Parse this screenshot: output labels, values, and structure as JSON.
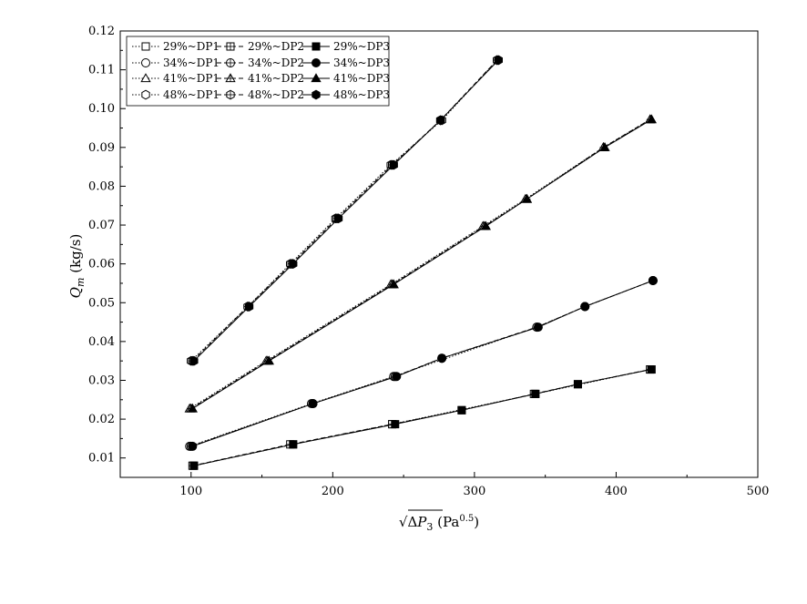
{
  "chart_data": {
    "type": "line",
    "xlabel": "√ΔP₃ (Pa^0.5)",
    "ylabel": "Q_m (kg/s)",
    "xlim": [
      50,
      500
    ],
    "ylim": [
      0.005,
      0.12
    ],
    "xticks": [
      100,
      200,
      300,
      400,
      500
    ],
    "yticks": [
      0.01,
      0.02,
      0.03,
      0.04,
      0.05,
      0.06,
      0.07,
      0.08,
      0.09,
      0.1,
      0.11,
      0.12
    ],
    "ytick_labels": [
      "0.01",
      "0.02",
      "0.03",
      "0.04",
      "0.05",
      "0.06",
      "0.07",
      "0.08",
      "0.09",
      "0.10",
      "0.11",
      "0.12"
    ],
    "legend_position": "top-left",
    "grid": false,
    "series": [
      {
        "name": "29%~DP1",
        "marker": "square-open",
        "line": "dotted",
        "x": [
          102,
          172,
          242,
          343,
          424
        ],
        "y": [
          0.008,
          0.0135,
          0.0187,
          0.0265,
          0.0328
        ]
      },
      {
        "name": "29%~DP2",
        "marker": "square-cross",
        "line": "dashed",
        "x": [
          101,
          170,
          242,
          291,
          342,
          373,
          424
        ],
        "y": [
          0.008,
          0.0135,
          0.0187,
          0.0223,
          0.0265,
          0.029,
          0.0328
        ]
      },
      {
        "name": "29%~DP3",
        "marker": "square-filled",
        "line": "solid",
        "x": [
          102,
          172,
          244,
          291,
          343,
          373,
          425
        ],
        "y": [
          0.008,
          0.0135,
          0.0187,
          0.0223,
          0.0265,
          0.029,
          0.0328
        ]
      },
      {
        "name": "34%~DP1",
        "marker": "circle-open",
        "line": "dotted",
        "x": [
          99,
          185,
          243,
          344,
          378,
          426
        ],
        "y": [
          0.013,
          0.024,
          0.031,
          0.0437,
          0.049,
          0.0557
        ]
      },
      {
        "name": "34%~DP2",
        "marker": "circle-cross",
        "line": "dashed",
        "x": [
          100,
          186,
          244,
          277,
          344,
          378,
          426
        ],
        "y": [
          0.013,
          0.024,
          0.031,
          0.0357,
          0.0437,
          0.049,
          0.0557
        ]
      },
      {
        "name": "34%~DP3",
        "marker": "circle-filled",
        "line": "solid",
        "x": [
          101,
          186,
          245,
          277,
          345,
          378,
          426
        ],
        "y": [
          0.013,
          0.024,
          0.031,
          0.0357,
          0.0437,
          0.049,
          0.0557
        ]
      },
      {
        "name": "41%~DP1",
        "marker": "triangle-open",
        "line": "dotted",
        "x": [
          99,
          153,
          241,
          306,
          336,
          391,
          424
        ],
        "y": [
          0.0227,
          0.035,
          0.0547,
          0.0697,
          0.0767,
          0.09,
          0.0972
        ]
      },
      {
        "name": "41%~DP2",
        "marker": "triangle-cross",
        "line": "dashed",
        "x": [
          100,
          154,
          242,
          307,
          337,
          391,
          424
        ],
        "y": [
          0.0227,
          0.035,
          0.0547,
          0.0697,
          0.0767,
          0.09,
          0.0972
        ]
      },
      {
        "name": "41%~DP3",
        "marker": "triangle-filled",
        "line": "solid",
        "x": [
          101,
          155,
          243,
          308,
          337,
          392,
          425
        ],
        "y": [
          0.0227,
          0.035,
          0.0547,
          0.0697,
          0.0767,
          0.09,
          0.0972
        ]
      },
      {
        "name": "48%~DP1",
        "marker": "hexagon-open",
        "line": "dotted",
        "x": [
          100,
          140,
          170,
          202,
          241,
          277,
          316
        ],
        "y": [
          0.035,
          0.049,
          0.06,
          0.0717,
          0.0855,
          0.097,
          0.1125
        ]
      },
      {
        "name": "48%~DP2",
        "marker": "hexagon-cross",
        "line": "dashed",
        "x": [
          101,
          140,
          171,
          203,
          242,
          276,
          316
        ],
        "y": [
          0.035,
          0.049,
          0.06,
          0.0717,
          0.0855,
          0.097,
          0.1125
        ]
      },
      {
        "name": "48%~DP3",
        "marker": "hexagon-filled",
        "line": "solid",
        "x": [
          102,
          141,
          172,
          204,
          243,
          276,
          317
        ],
        "y": [
          0.035,
          0.049,
          0.06,
          0.0717,
          0.0855,
          0.097,
          0.1125
        ]
      }
    ]
  }
}
